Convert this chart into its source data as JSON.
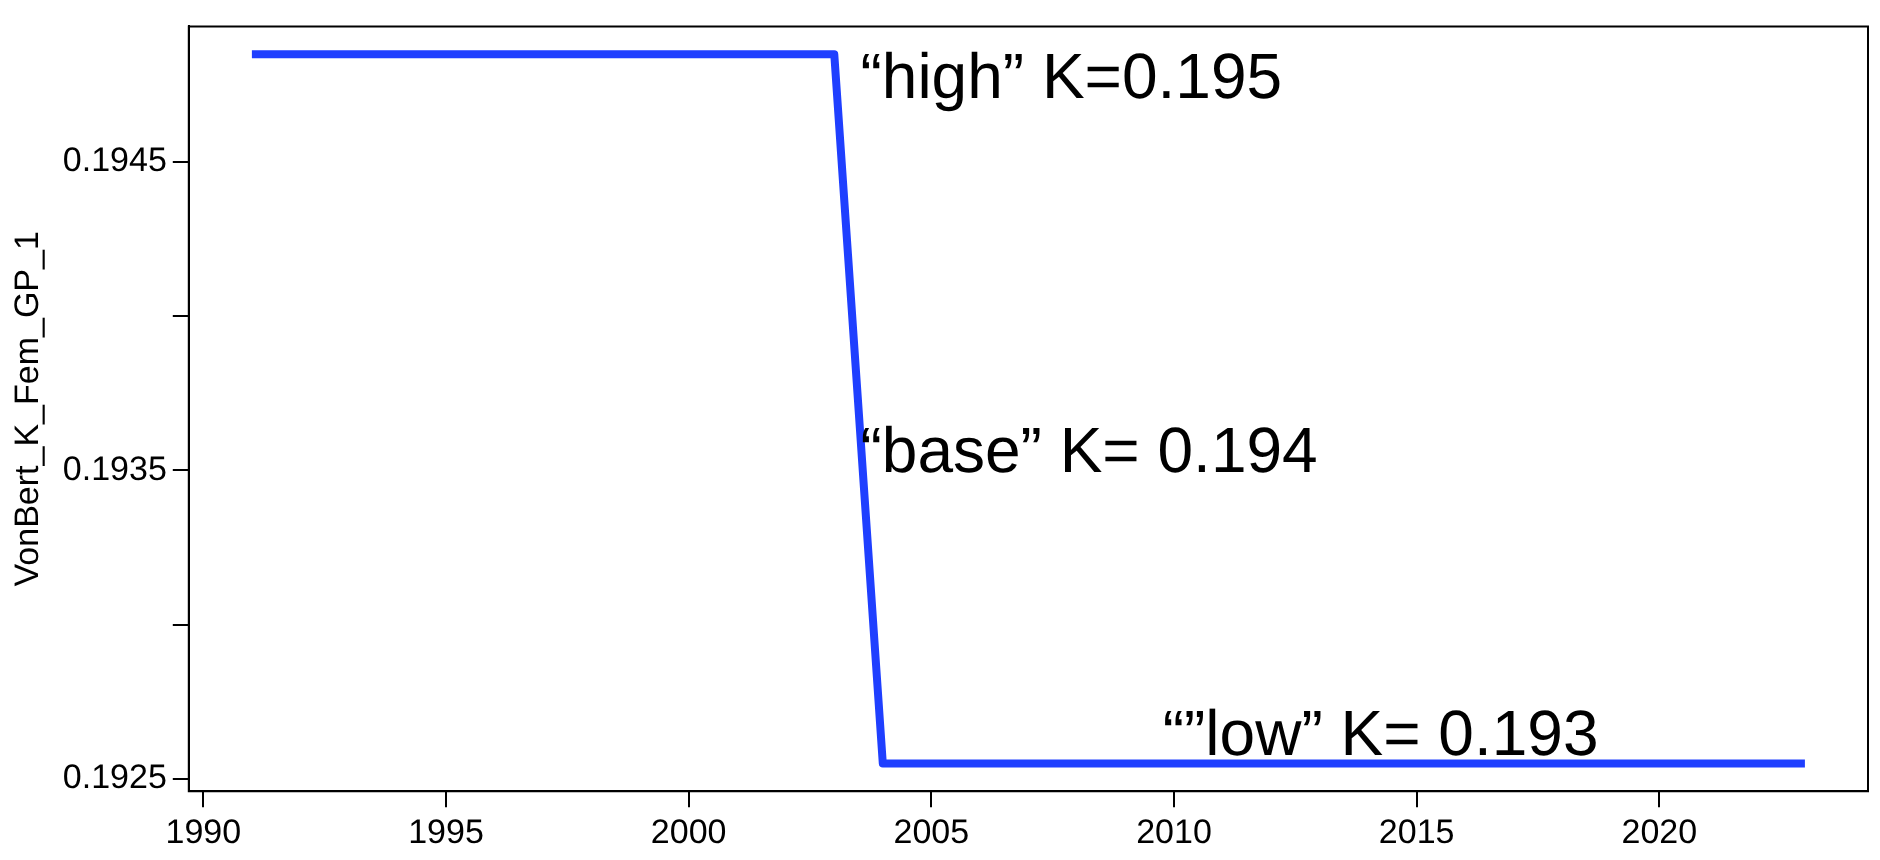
{
  "chart_data": {
    "type": "line",
    "ylabel": "VonBert_K_Fem_GP_1",
    "x": [
      1991,
      2003,
      2004,
      2023
    ],
    "series": [
      {
        "color": "#1f3fff",
        "values": [
          0.19485,
          0.19485,
          0.19255,
          0.19255
        ]
      }
    ],
    "xlim": [
      1989.7,
      2024.3
    ],
    "xticks": [
      1990,
      1995,
      2000,
      2005,
      2010,
      2015,
      2020
    ],
    "ylim": [
      0.19246,
      0.19494
    ],
    "yticks": [
      0.1925,
      {
        "value": 0.193,
        "label": null
      },
      0.1935,
      {
        "value": 0.194,
        "label": null
      },
      0.1945
    ],
    "grid": false,
    "legend": false,
    "marker": "none",
    "line_style": "solid",
    "annotations": [
      "“high” K=0.195",
      "“base” K= 0.194",
      "“”low” K= 0.193"
    ]
  }
}
